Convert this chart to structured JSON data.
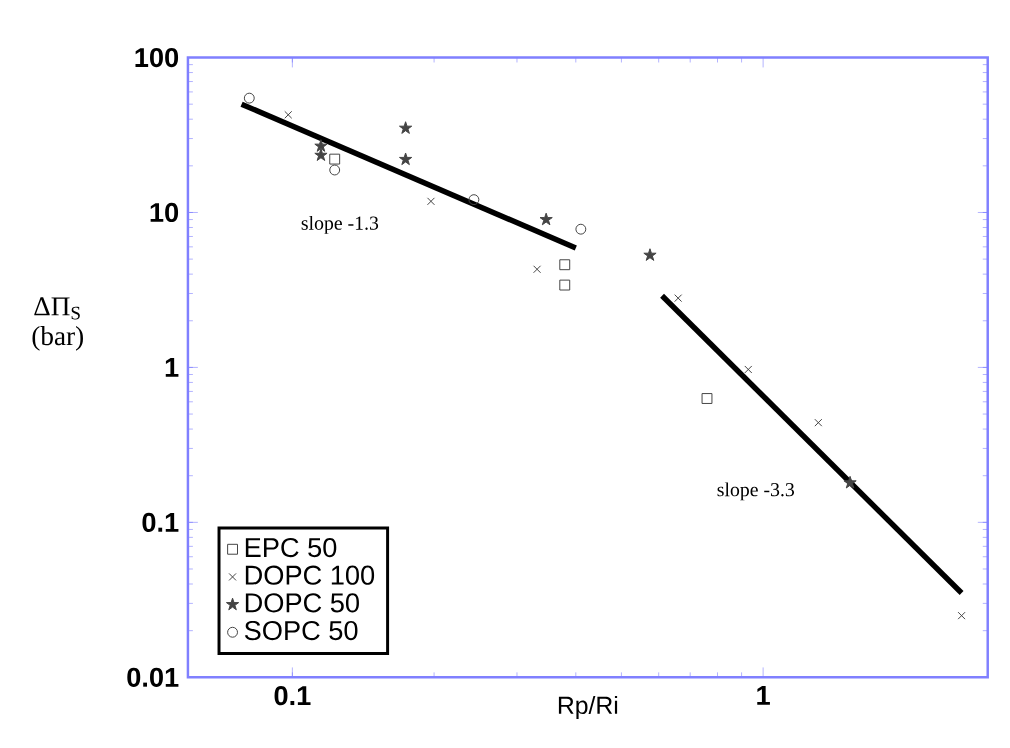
{
  "chart_data": {
    "type": "scatter",
    "xlabel": "Rp/Ri",
    "ylabel": "ΔΠ$_{S}$ (bar)",
    "log": "xy",
    "xlim": [
      0.06,
      3
    ],
    "ylim": [
      0.01,
      100
    ],
    "xticks": [
      0.1,
      1
    ],
    "yticks": [
      0.01,
      0.1,
      1,
      10,
      100
    ],
    "legend": "bottom left",
    "series": [
      {
        "name": "EPC 50",
        "color": "#444444",
        "marker": "square",
        "x": [
          0.123,
          0.379,
          0.379,
          0.76
        ],
        "values": [
          22.1,
          4.6,
          3.4,
          0.63
        ]
      },
      {
        "name": "DOPC 100",
        "color": "#444444",
        "marker": "cross",
        "x": [
          0.098,
          0.197,
          0.331,
          0.66,
          0.93,
          1.31,
          2.64
        ],
        "values": [
          42.7,
          11.8,
          4.3,
          2.8,
          0.97,
          0.44,
          0.025
        ]
      },
      {
        "name": "DOPC 50",
        "color": "#444444",
        "marker": "star",
        "x": [
          0.115,
          0.115,
          0.174,
          0.174,
          0.346,
          0.575,
          1.53
        ],
        "values": [
          26.8,
          23.4,
          35,
          22,
          9.0,
          5.3,
          0.18
        ]
      },
      {
        "name": "SOPC 50",
        "color": "#444444",
        "marker": "circle",
        "x": [
          0.081,
          0.123,
          0.243,
          0.41
        ],
        "values": [
          54.7,
          18.8,
          12.1,
          7.8
        ]
      },
      {
        "type": "line",
        "color": "#000000",
        "marker": "none",
        "x": [
          0.078,
          0.4
        ],
        "values": [
          50,
          5.9
        ]
      },
      {
        "type": "line",
        "color": "#000000",
        "marker": "none",
        "x": [
          0.61,
          2.64
        ],
        "values": [
          2.9,
          0.035
        ]
      }
    ],
    "annotations": [
      "slope -1.3",
      "slope -3.3"
    ]
  }
}
